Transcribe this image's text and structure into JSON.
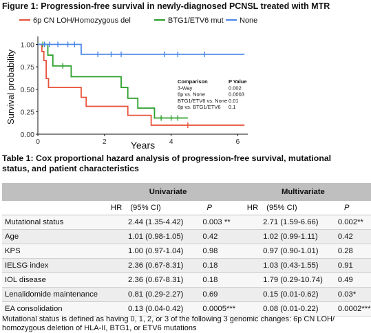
{
  "figure_title": "Figure 1: Progression-free survival in newly-diagnosed PCNSL treated with MTR",
  "chart_data": {
    "type": "line",
    "subtype": "kaplan-meier",
    "xlabel": "Years",
    "ylabel": "Survival probability",
    "xlim": [
      0,
      6.3
    ],
    "ylim": [
      0,
      1.05
    ],
    "xticks": [
      0,
      2,
      4,
      6
    ],
    "yticks": [
      0.0,
      0.25,
      0.5,
      0.75,
      1.0
    ],
    "ytick_labels": [
      "0.00",
      "0.25",
      "0.50",
      "0.75",
      "1.00"
    ],
    "grid": false,
    "legend_position": "top",
    "series": [
      {
        "name": "6p CN LOH/Homozygous del",
        "color": "#e8533a",
        "steps": [
          [
            0,
            1.0
          ],
          [
            0.12,
            0.92
          ],
          [
            0.18,
            0.82
          ],
          [
            0.25,
            0.62
          ],
          [
            0.32,
            0.52
          ],
          [
            1.3,
            0.41
          ],
          [
            1.45,
            0.31
          ],
          [
            2.7,
            0.21
          ],
          [
            3.4,
            0.1
          ],
          [
            6.2,
            0.1
          ]
        ],
        "censored": [
          [
            4.5,
            0.1
          ]
        ]
      },
      {
        "name": "BTG1/ETV6 mut",
        "color": "#2ca02c",
        "steps": [
          [
            0,
            1.0
          ],
          [
            0.3,
            0.88
          ],
          [
            0.45,
            0.76
          ],
          [
            1.0,
            0.64
          ],
          [
            2.5,
            0.52
          ],
          [
            2.7,
            0.4
          ],
          [
            3.0,
            0.29
          ],
          [
            3.5,
            0.18
          ],
          [
            4.5,
            0.18
          ]
        ],
        "censored": [
          [
            0.15,
            1.0
          ],
          [
            0.75,
            0.76
          ],
          [
            3.7,
            0.18
          ],
          [
            4.0,
            0.18
          ],
          [
            4.2,
            0.18
          ]
        ]
      },
      {
        "name": "None",
        "color": "#4a86e8",
        "steps": [
          [
            0,
            1.0
          ],
          [
            1.3,
            0.89
          ],
          [
            6.2,
            0.89
          ]
        ],
        "censored": [
          [
            0.2,
            1.0
          ],
          [
            0.35,
            1.0
          ],
          [
            0.6,
            1.0
          ],
          [
            0.9,
            1.0
          ],
          [
            1.1,
            1.0
          ],
          [
            1.8,
            0.89
          ],
          [
            2.2,
            0.89
          ],
          [
            2.5,
            0.89
          ],
          [
            3.8,
            0.89
          ],
          [
            4.2,
            0.89
          ],
          [
            5.0,
            0.89
          ]
        ]
      }
    ],
    "annotation_table": {
      "header": [
        "Comparison",
        "P Value"
      ],
      "rows": [
        [
          "3-Way",
          "0.002"
        ],
        [
          "6p vs. None",
          "0.0003"
        ],
        [
          "BTG1/ETV6 vs. None",
          "0.01"
        ],
        [
          "6p vs. BTG1/ETV6",
          "0.1"
        ]
      ]
    }
  },
  "table_title": "Table 1: Cox proportional hazard analysis of progression-free survival, mutational status, and patient characteristics",
  "table": {
    "group_headers": [
      "Univariate",
      "Multivariate"
    ],
    "sub_headers": [
      "HR",
      "(95% CI)",
      "P",
      "HR",
      "(95% CI)",
      "P"
    ],
    "rows": [
      {
        "label": "Mutational status",
        "u_hr": "2.44 (1.35-4.42)",
        "u_p": "0.003 **",
        "m_hr": "2.71 (1.59-6.66)",
        "m_p": "0.002**"
      },
      {
        "label": "Age",
        "u_hr": "1.01 (0.98-1.05)",
        "u_p": "0.42",
        "m_hr": "1.02 (0.99-1.11)",
        "m_p": "0.42"
      },
      {
        "label": "KPS",
        "u_hr": "1.00 (0.97-1.04)",
        "u_p": "0.98",
        "m_hr": "0.97 (0.90-1.01)",
        "m_p": "0.28"
      },
      {
        "label": "IELSG index",
        "u_hr": "2.36 (0.67-8.31)",
        "u_p": "0.18",
        "m_hr": "1.03 (0.43-1.55)",
        "m_p": "0.91"
      },
      {
        "label": "IOL disease",
        "u_hr": "2.36 (0.67-8.31)",
        "u_p": "0.18",
        "m_hr": "1.79 (0.29-10.74)",
        "m_p": "0.49"
      },
      {
        "label": "Lenalidomide maintenance",
        "u_hr": "0.81 (0.29-2.27)",
        "u_p": "0.69",
        "m_hr": "0.15 (0.01-0.62)",
        "m_p": "0.03*"
      },
      {
        "label": "EA consolidation",
        "u_hr": "0.13 (0.04-0.42)",
        "u_p": "0.0005***",
        "m_hr": "0.08 (0.01-0.22)",
        "m_p": "0.0002***"
      }
    ]
  },
  "footnote": "Mutational status is defined as having 0, 1, 2, or 3 of the following 3 genomic changes: 6p CN LOH/ homozygous deletion of HLA-II, BTG1, or ETV6 mutations"
}
